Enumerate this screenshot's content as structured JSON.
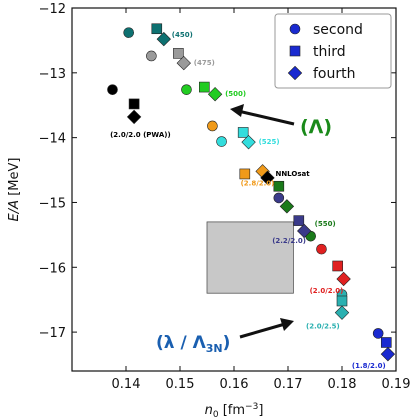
{
  "chart_data": {
    "type": "scatter",
    "xlabel": "n_0 [fm^-3]",
    "ylabel": "E/A [MeV]",
    "xlim": [
      0.13,
      0.19
    ],
    "ylim": [
      -17.6,
      -12.0
    ],
    "xticks": [
      "0.14",
      "0.15",
      "0.16",
      "0.17",
      "0.18",
      "0.19"
    ],
    "yticks": [
      "-12",
      "-13",
      "-14",
      "-15",
      "-16",
      "-17"
    ],
    "legend": {
      "position": "top-right",
      "entries": [
        {
          "label": "second",
          "marker": "circle"
        },
        {
          "label": "third",
          "marker": "square"
        },
        {
          "label": "fourth",
          "marker": "diamond"
        }
      ]
    },
    "empirical_box": {
      "x": [
        0.155,
        0.171
      ],
      "y": [
        -16.4,
        -15.3
      ],
      "color": "#c8c8c8"
    },
    "families": [
      {
        "label": "(450)",
        "color": "#0e7171",
        "points": [
          {
            "order": "second",
            "x": 0.1405,
            "y": -12.38
          },
          {
            "order": "third",
            "x": 0.1457,
            "y": -12.32
          },
          {
            "order": "fourth",
            "x": 0.147,
            "y": -12.48
          }
        ]
      },
      {
        "label": "(475)",
        "color": "#9a9a9a",
        "points": [
          {
            "order": "second",
            "x": 0.1447,
            "y": -12.74
          },
          {
            "order": "third",
            "x": 0.1497,
            "y": -12.7
          },
          {
            "order": "fourth",
            "x": 0.1507,
            "y": -12.85
          }
        ]
      },
      {
        "label": "(2.0/2.0 (PWA))",
        "color": "#000000",
        "points": [
          {
            "order": "second",
            "x": 0.1375,
            "y": -13.26
          },
          {
            "order": "third",
            "x": 0.1415,
            "y": -13.48
          },
          {
            "order": "fourth",
            "x": 0.1415,
            "y": -13.68
          }
        ]
      },
      {
        "label": "(500)",
        "color": "#22cc22",
        "points": [
          {
            "order": "second",
            "x": 0.1512,
            "y": -13.26
          },
          {
            "order": "third",
            "x": 0.1545,
            "y": -13.22
          },
          {
            "order": "fourth",
            "x": 0.1565,
            "y": -13.33
          }
        ]
      },
      {
        "label": "(525)",
        "color": "#33dddd",
        "points": [
          {
            "order": "second",
            "x": 0.1577,
            "y": -14.06
          },
          {
            "order": "third",
            "x": 0.1617,
            "y": -13.92
          },
          {
            "order": "fourth",
            "x": 0.1627,
            "y": -14.07
          }
        ]
      },
      {
        "label": "(2.8/2.0)",
        "color": "#f09a1a",
        "points": [
          {
            "order": "second",
            "x": 0.156,
            "y": -13.82
          },
          {
            "order": "third",
            "x": 0.162,
            "y": -14.56
          },
          {
            "order": "fourth",
            "x": 0.1653,
            "y": -14.52
          }
        ]
      },
      {
        "label": "NNLOsat",
        "color": "#000000",
        "points": [
          {
            "order": "fourth",
            "x": 0.1662,
            "y": -14.62
          }
        ]
      },
      {
        "label": "(550)",
        "color": "#1a7a1a",
        "points": [
          {
            "order": "third",
            "x": 0.1683,
            "y": -14.75
          },
          {
            "order": "fourth",
            "x": 0.1698,
            "y": -15.06
          },
          {
            "order": "second",
            "x": 0.1742,
            "y": -15.52
          }
        ]
      },
      {
        "label": "(2.2/2.0)",
        "color": "#3a3a8a",
        "points": [
          {
            "order": "second",
            "x": 0.1683,
            "y": -14.93
          },
          {
            "order": "third",
            "x": 0.172,
            "y": -15.28
          },
          {
            "order": "fourth",
            "x": 0.173,
            "y": -15.44
          }
        ]
      },
      {
        "label": "(2.0/2.0)",
        "color": "#e02020",
        "points": [
          {
            "order": "second",
            "x": 0.1762,
            "y": -15.72
          },
          {
            "order": "third",
            "x": 0.1792,
            "y": -15.98
          },
          {
            "order": "fourth",
            "x": 0.1803,
            "y": -16.18
          }
        ]
      },
      {
        "label": "(2.0/2.5)",
        "color": "#2ab0b0",
        "points": [
          {
            "order": "second",
            "x": 0.18,
            "y": -16.42
          },
          {
            "order": "third",
            "x": 0.18,
            "y": -16.52
          },
          {
            "order": "fourth",
            "x": 0.18,
            "y": -16.7
          }
        ]
      },
      {
        "label": "(1.8/2.0)",
        "color": "#1a2ad0",
        "points": [
          {
            "order": "second",
            "x": 0.1867,
            "y": -17.02
          },
          {
            "order": "third",
            "x": 0.1882,
            "y": -17.16
          },
          {
            "order": "fourth",
            "x": 0.1885,
            "y": -17.34
          }
        ]
      }
    ],
    "annotations": [
      {
        "text": "(Λ)",
        "color": "#1a8a1a"
      },
      {
        "text": "(λ / Λ3N)",
        "color": "#1a5fb0"
      }
    ]
  }
}
